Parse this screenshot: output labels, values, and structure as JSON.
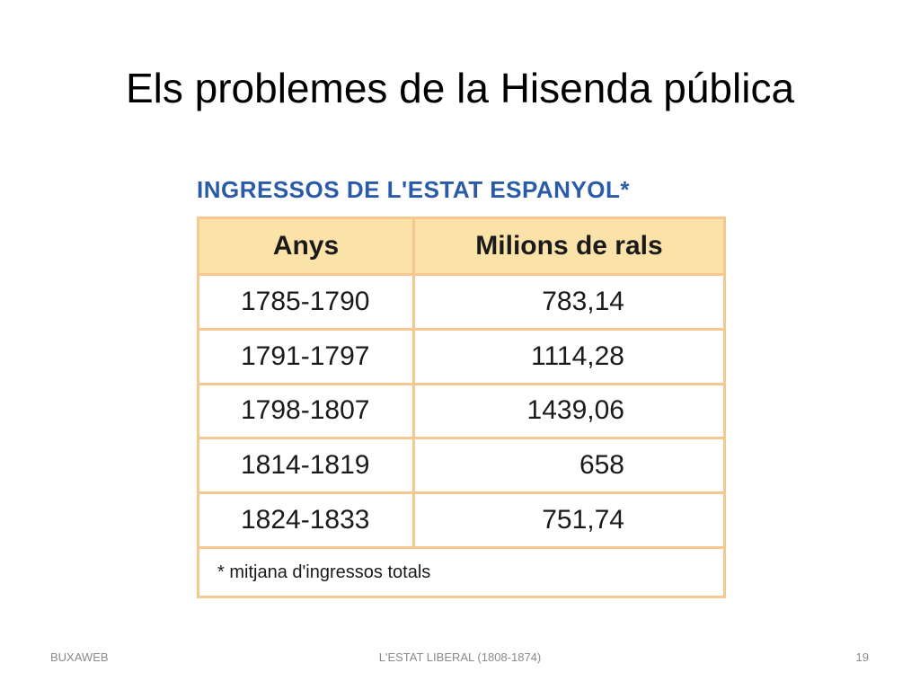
{
  "slide": {
    "title": "Els problemes de la Hisenda pública",
    "table": {
      "caption": "INGRESSOS DE L'ESTAT ESPANYOL*",
      "headers": [
        "Anys",
        "Milions de rals"
      ],
      "rows": [
        [
          "1785-1790",
          "783,14"
        ],
        [
          "1791-1797",
          "1114,28"
        ],
        [
          "1798-1807",
          "1439,06"
        ],
        [
          "1814-1819",
          "658"
        ],
        [
          "1824-1833",
          "751,74"
        ]
      ],
      "footnote": "* mitjana d'ingressos totals",
      "border_color": "#f5c98e",
      "header_bg": "#fbe2a8",
      "caption_color": "#2a5ba8"
    },
    "footer": {
      "left": "BUXAWEB",
      "center": "L'ESTAT LIBERAL (1808-1874)",
      "page_number": "19"
    }
  }
}
